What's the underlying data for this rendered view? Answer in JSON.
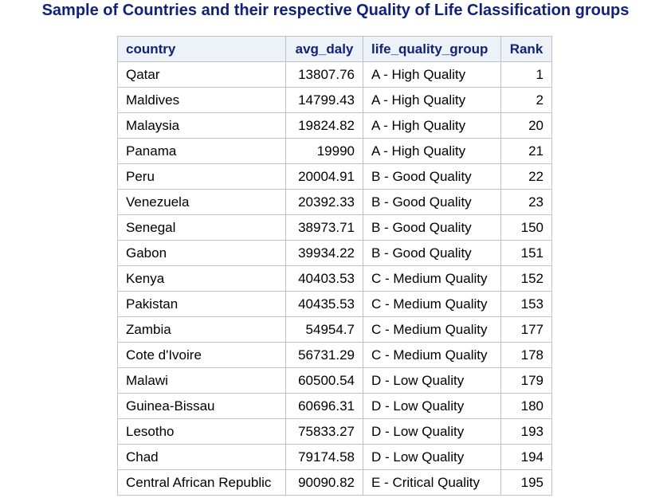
{
  "title": "Sample of Countries and their respective Quality of Life Classification groups",
  "columns": [
    "country",
    "avg_daly",
    "life_quality_group",
    "Rank"
  ],
  "rows": [
    {
      "country": "Qatar",
      "avg_daly": "13807.76",
      "life_quality_group": "A - High Quality",
      "rank": "1"
    },
    {
      "country": "Maldives",
      "avg_daly": "14799.43",
      "life_quality_group": "A - High Quality",
      "rank": "2"
    },
    {
      "country": "Malaysia",
      "avg_daly": "19824.82",
      "life_quality_group": "A - High Quality",
      "rank": "20"
    },
    {
      "country": "Panama",
      "avg_daly": "19990",
      "life_quality_group": "A - High Quality",
      "rank": "21"
    },
    {
      "country": "Peru",
      "avg_daly": "20004.91",
      "life_quality_group": "B - Good Quality",
      "rank": "22"
    },
    {
      "country": "Venezuela",
      "avg_daly": "20392.33",
      "life_quality_group": "B - Good Quality",
      "rank": "23"
    },
    {
      "country": "Senegal",
      "avg_daly": "38973.71",
      "life_quality_group": "B - Good Quality",
      "rank": "150"
    },
    {
      "country": "Gabon",
      "avg_daly": "39934.22",
      "life_quality_group": "B - Good Quality",
      "rank": "151"
    },
    {
      "country": "Kenya",
      "avg_daly": "40403.53",
      "life_quality_group": "C - Medium Quality",
      "rank": "152"
    },
    {
      "country": "Pakistan",
      "avg_daly": "40435.53",
      "life_quality_group": "C - Medium Quality",
      "rank": "153"
    },
    {
      "country": "Zambia",
      "avg_daly": "54954.7",
      "life_quality_group": "C - Medium Quality",
      "rank": "177"
    },
    {
      "country": "Cote d'Ivoire",
      "avg_daly": "56731.29",
      "life_quality_group": "C - Medium Quality",
      "rank": "178"
    },
    {
      "country": "Malawi",
      "avg_daly": "60500.54",
      "life_quality_group": "D - Low Quality",
      "rank": "179"
    },
    {
      "country": "Guinea-Bissau",
      "avg_daly": "60696.31",
      "life_quality_group": "D - Low Quality",
      "rank": "180"
    },
    {
      "country": "Lesotho",
      "avg_daly": "75833.27",
      "life_quality_group": "D - Low Quality",
      "rank": "193"
    },
    {
      "country": "Chad",
      "avg_daly": "79174.58",
      "life_quality_group": "D - Low Quality",
      "rank": "194"
    },
    {
      "country": "Central African Republic",
      "avg_daly": "90090.82",
      "life_quality_group": "E - Critical Quality",
      "rank": "195"
    }
  ],
  "colors": {
    "title": "#112277",
    "header_text": "#112277",
    "header_bg": "#edf2f9",
    "border": "#c1c1c1"
  }
}
